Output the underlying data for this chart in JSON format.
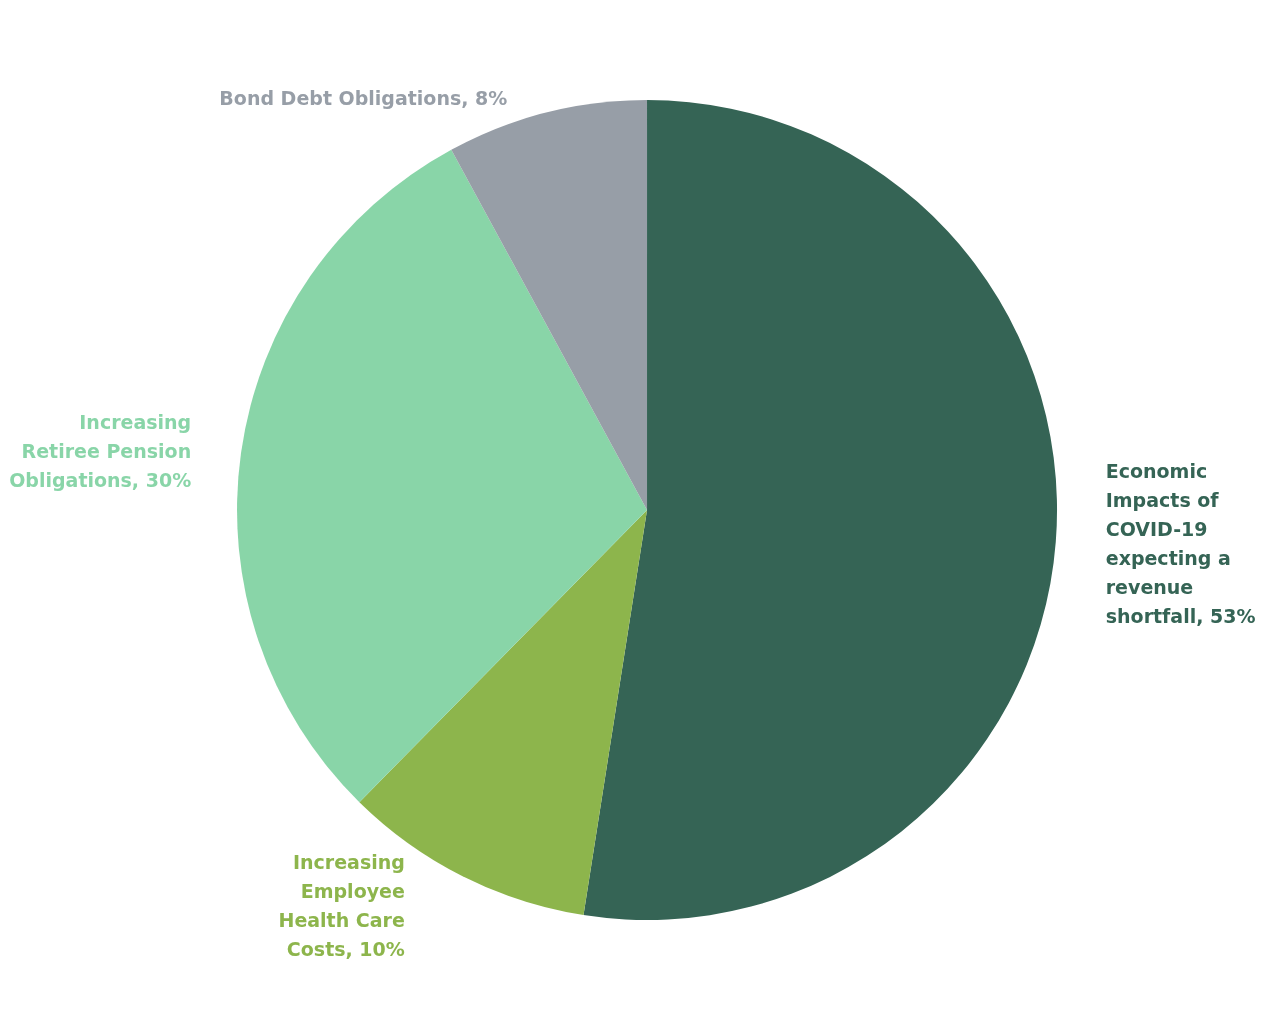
{
  "chart_data": {
    "type": "pie",
    "categories": [
      "Economic Impacts of COVID-19 expecting a revenue shortfall",
      "Increasing Employee Health Care Costs",
      "Increasing Retiree Pension Obligations",
      "Bond Debt Obligations"
    ],
    "values": [
      53,
      10,
      30,
      8
    ],
    "value_labels": [
      "53%",
      "10%",
      "30%",
      "8%"
    ],
    "colors": [
      "#356455",
      "#8db54c",
      "#89d5a8",
      "#979ea7"
    ]
  }
}
